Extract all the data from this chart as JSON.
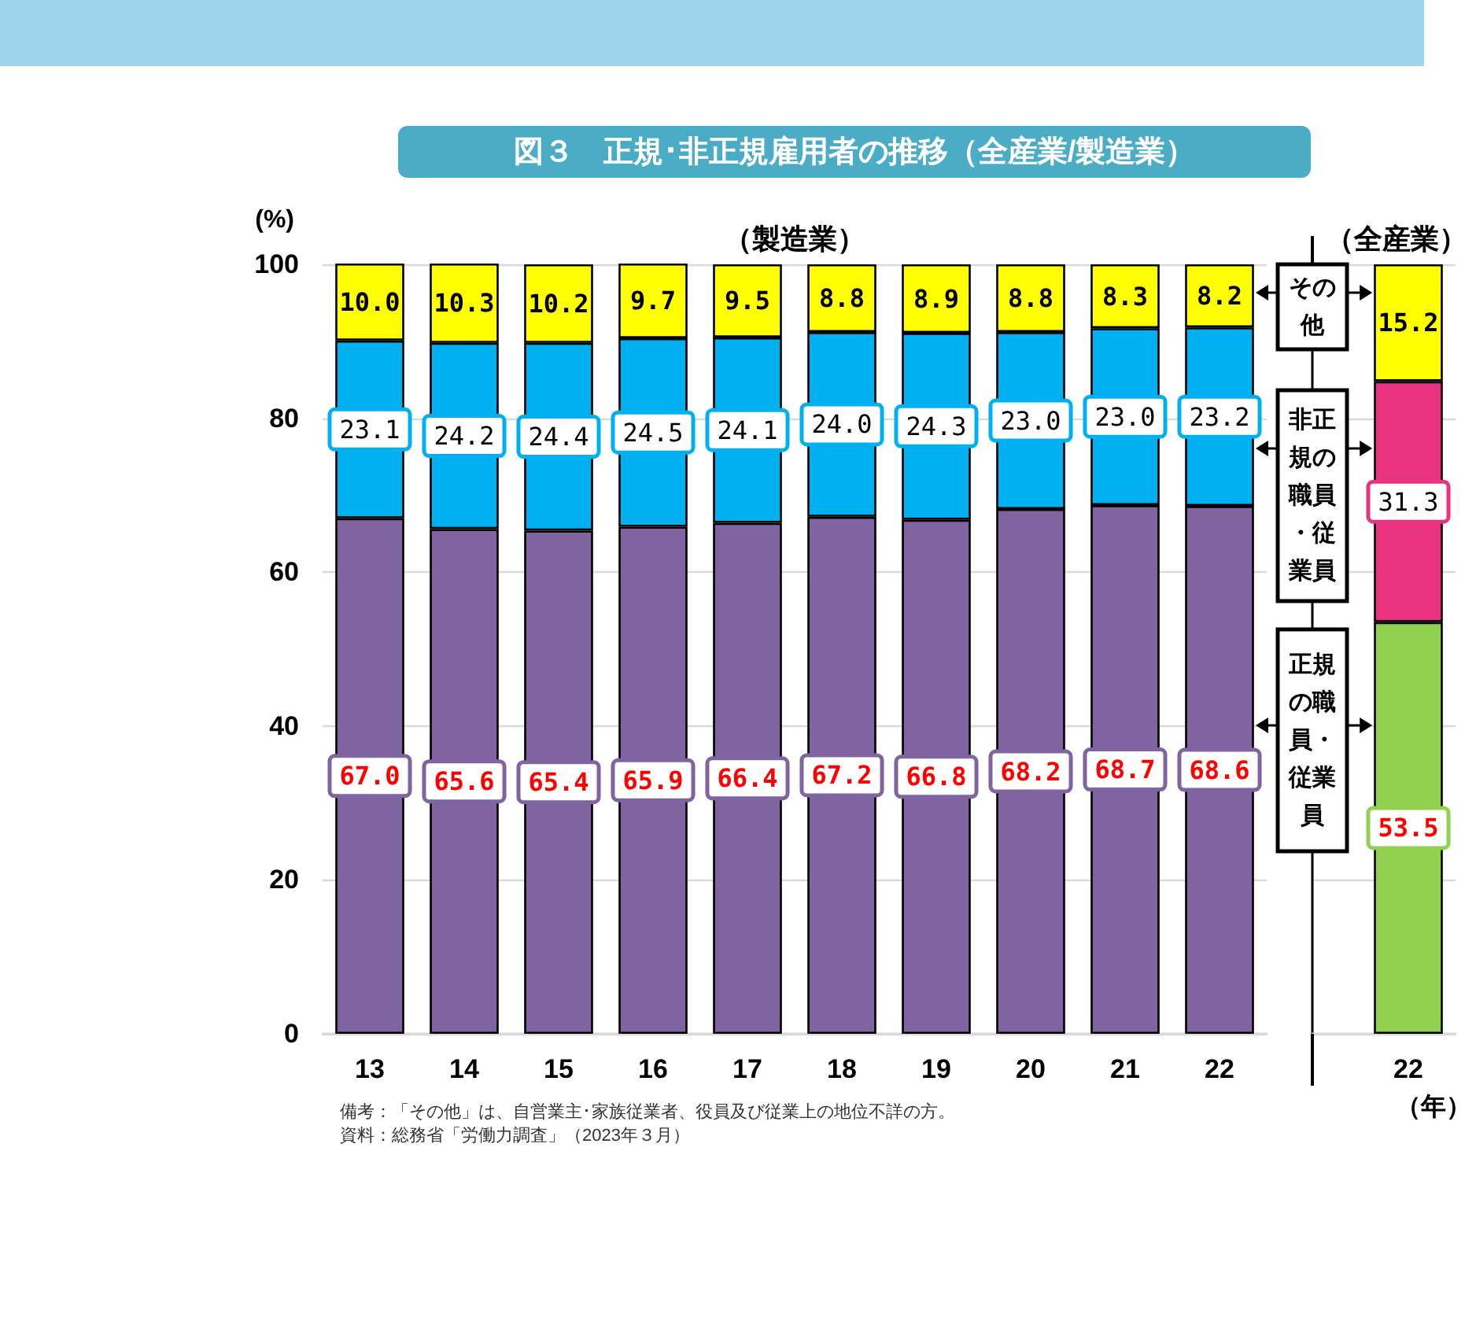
{
  "chart_data": [
    {
      "type": "bar",
      "stacked": true,
      "title": "図３　正規･非正規雇用者の推移（全産業/製造業）",
      "subtitle": "（製造業）",
      "ylabel": "(%)",
      "categories": [
        "13",
        "14",
        "15",
        "16",
        "17",
        "18",
        "19",
        "20",
        "21",
        "22"
      ],
      "series": [
        {
          "name": "正規の職員・従業員",
          "color": "#8064a2",
          "values": [
            67.0,
            65.6,
            65.4,
            65.9,
            66.4,
            67.2,
            66.8,
            68.2,
            68.7,
            68.6
          ],
          "value_labels": [
            "67.0",
            "65.6",
            "65.4",
            "65.9",
            "66.4",
            "67.2",
            "66.8",
            "68.2",
            "68.7",
            "68.6"
          ]
        },
        {
          "name": "非正規の職員・従業員",
          "color": "#00b0f0",
          "values": [
            23.1,
            24.2,
            24.4,
            24.5,
            24.1,
            24.0,
            24.3,
            23.0,
            23.0,
            23.2
          ],
          "value_labels": [
            "23.1",
            "24.2",
            "24.4",
            "24.5",
            "24.1",
            "24.0",
            "24.3",
            "23.0",
            "23.0",
            "23.2"
          ]
        },
        {
          "name": "その他",
          "color": "#ffff00",
          "values": [
            10.0,
            10.3,
            10.2,
            9.7,
            9.5,
            8.8,
            8.9,
            8.8,
            8.3,
            8.2
          ],
          "value_labels": [
            "10.0",
            "10.3",
            "10.2",
            "9.7",
            "9.5",
            "8.8",
            "8.9",
            "8.8",
            "8.3",
            "8.2"
          ]
        }
      ],
      "ylim": [
        0,
        100
      ],
      "yticks": [
        0,
        20,
        40,
        60,
        80,
        100
      ],
      "grid": "y",
      "legend": "right",
      "annotations": [
        "備考：「その他」は、自営業主･家族従業者、役員及び従業上の地位不詳の方。",
        "資料：総務省「労働力調査」（2023年３月）"
      ]
    },
    {
      "type": "bar",
      "stacked": true,
      "title": "（全産業）",
      "xlabel": "（年）",
      "categories": [
        "22"
      ],
      "series": [
        {
          "color": "#92d050",
          "values": [
            53.5
          ],
          "value_labels": [
            "53.5"
          ]
        },
        {
          "color": "#ea3380",
          "values": [
            31.3
          ],
          "value_labels": [
            "31.3"
          ]
        },
        {
          "color": "#ffff00",
          "values": [
            15.2
          ],
          "value_labels": [
            "15.2"
          ]
        }
      ],
      "ylim": [
        0,
        100
      ],
      "yticks": [
        0,
        20,
        40,
        60,
        80,
        100
      ],
      "grid": "y",
      "tick_labels": "x"
    }
  ]
}
